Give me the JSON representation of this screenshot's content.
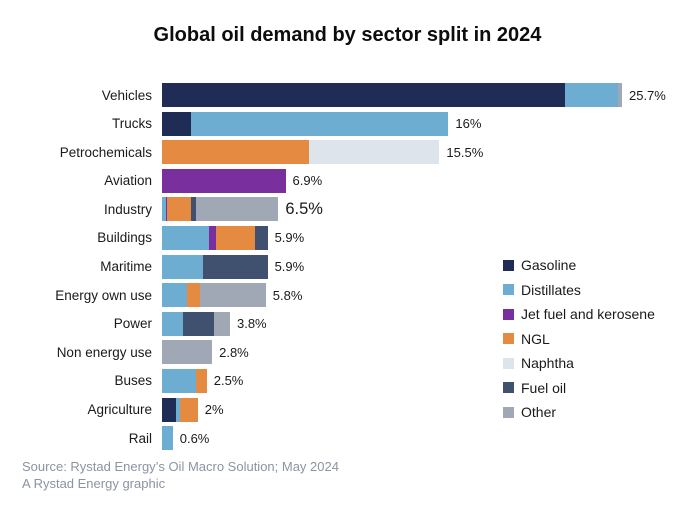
{
  "title": "Global oil demand by sector split in 2024",
  "source": {
    "line1": "Source: Rystad Energy’s Oil Macro Solution; May 2024",
    "line2": "A Rystad Energy graphic"
  },
  "chart_data": {
    "type": "bar",
    "orientation": "horizontal",
    "stacked": true,
    "unit": "%",
    "axis_max": 25.7,
    "grid": false,
    "legend_position": "right",
    "legend": [
      "Gasoline",
      "Distillates",
      "Jet fuel and kerosene",
      "NGL",
      "Naphtha",
      "Fuel oil",
      "Other"
    ],
    "series_colors": {
      "Gasoline": "#1f2c55",
      "Distillates": "#6cadd1",
      "Jet fuel and kerosene": "#7a2f9f",
      "NGL": "#e58a41",
      "Naphtha": "#dde4ec",
      "Fuel oil": "#3f516f",
      "Other": "#9fa8b4"
    },
    "rows": [
      {
        "category": "Vehicles",
        "total": 25.7,
        "total_label": "25.7%",
        "segments": [
          {
            "series": "Gasoline",
            "value": 22.5
          },
          {
            "series": "Distillates",
            "value": 3.0
          },
          {
            "series": "Other",
            "value": 0.2
          }
        ]
      },
      {
        "category": "Trucks",
        "total": 16,
        "total_label": "16%",
        "segments": [
          {
            "series": "Gasoline",
            "value": 1.6
          },
          {
            "series": "Distillates",
            "value": 14.4
          }
        ]
      },
      {
        "category": "Petrochemicals",
        "total": 15.5,
        "total_label": "15.5%",
        "segments": [
          {
            "series": "NGL",
            "value": 8.2
          },
          {
            "series": "Naphtha",
            "value": 7.3
          }
        ]
      },
      {
        "category": "Aviation",
        "total": 6.9,
        "total_label": "6.9%",
        "segments": [
          {
            "series": "Jet fuel and kerosene",
            "value": 6.9
          }
        ]
      },
      {
        "category": "Industry",
        "total": 6.5,
        "total_label": "6.5%",
        "value_label_large": true,
        "segments": [
          {
            "series": "Distillates",
            "value": 0.2
          },
          {
            "series": "Jet fuel and kerosene",
            "value": 0.1
          },
          {
            "series": "NGL",
            "value": 1.3
          },
          {
            "series": "Fuel oil",
            "value": 0.3
          },
          {
            "series": "Other",
            "value": 4.6
          }
        ]
      },
      {
        "category": "Buildings",
        "total": 5.9,
        "total_label": "5.9%",
        "segments": [
          {
            "series": "Distillates",
            "value": 2.6
          },
          {
            "series": "Jet fuel and kerosene",
            "value": 0.4
          },
          {
            "series": "NGL",
            "value": 2.2
          },
          {
            "series": "Fuel oil",
            "value": 0.7
          }
        ]
      },
      {
        "category": "Maritime",
        "total": 5.9,
        "total_label": "5.9%",
        "segments": [
          {
            "series": "Distillates",
            "value": 2.3
          },
          {
            "series": "Fuel oil",
            "value": 3.6
          }
        ]
      },
      {
        "category": "Energy own use",
        "total": 5.8,
        "total_label": "5.8%",
        "segments": [
          {
            "series": "Distillates",
            "value": 1.4
          },
          {
            "series": "NGL",
            "value": 0.7
          },
          {
            "series": "Other",
            "value": 3.7
          }
        ]
      },
      {
        "category": "Power",
        "total": 3.8,
        "total_label": "3.8%",
        "segments": [
          {
            "series": "Distillates",
            "value": 1.2
          },
          {
            "series": "Fuel oil",
            "value": 1.7
          },
          {
            "series": "Other",
            "value": 0.9
          }
        ]
      },
      {
        "category": "Non energy use",
        "total": 2.8,
        "total_label": "2.8%",
        "segments": [
          {
            "series": "Other",
            "value": 2.8
          }
        ]
      },
      {
        "category": "Buses",
        "total": 2.5,
        "total_label": "2.5%",
        "segments": [
          {
            "series": "Distillates",
            "value": 1.9
          },
          {
            "series": "NGL",
            "value": 0.6
          }
        ]
      },
      {
        "category": "Agriculture",
        "total": 2,
        "total_label": "2%",
        "segments": [
          {
            "series": "Gasoline",
            "value": 0.8
          },
          {
            "series": "Distillates",
            "value": 0.2
          },
          {
            "series": "NGL",
            "value": 1.0
          }
        ]
      },
      {
        "category": "Rail",
        "total": 0.6,
        "total_label": "0.6%",
        "segments": [
          {
            "series": "Distillates",
            "value": 0.6
          }
        ]
      }
    ]
  }
}
